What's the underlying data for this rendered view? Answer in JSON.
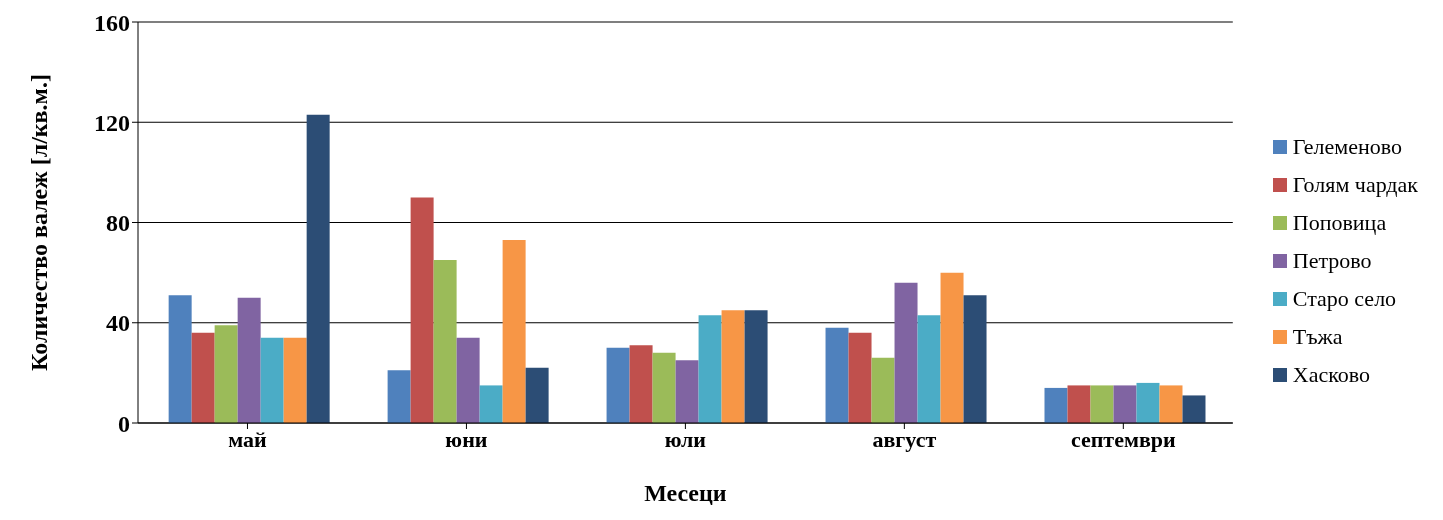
{
  "chart_data": {
    "type": "bar",
    "xlabel": "Месеци",
    "ylabel": "Количество валеж [л/кв.м.]",
    "categories": [
      "май",
      "юни",
      "юли",
      "август",
      "септември"
    ],
    "series": [
      {
        "name": "Гелеменово",
        "color": "#4f81bd",
        "values": [
          51,
          21,
          30,
          38,
          14
        ]
      },
      {
        "name": "Голям чардак",
        "color": "#c0504d",
        "values": [
          36,
          90,
          31,
          36,
          15
        ]
      },
      {
        "name": "Поповица",
        "color": "#9bbb59",
        "values": [
          39,
          65,
          28,
          26,
          15
        ]
      },
      {
        "name": "Петрово",
        "color": "#8064a2",
        "values": [
          50,
          34,
          25,
          56,
          15
        ]
      },
      {
        "name": "Старо село",
        "color": "#4bacc6",
        "values": [
          34,
          15,
          43,
          43,
          16
        ]
      },
      {
        "name": "Тъжа",
        "color": "#f79646",
        "values": [
          34,
          73,
          45,
          60,
          15
        ]
      },
      {
        "name": "Хасково",
        "color": "#2c4d75",
        "values": [
          123,
          22,
          45,
          51,
          11
        ]
      }
    ],
    "ylim": [
      0,
      160
    ],
    "yticks": [
      0,
      40,
      80,
      120,
      160
    ],
    "grid": "y",
    "legend": "right"
  }
}
